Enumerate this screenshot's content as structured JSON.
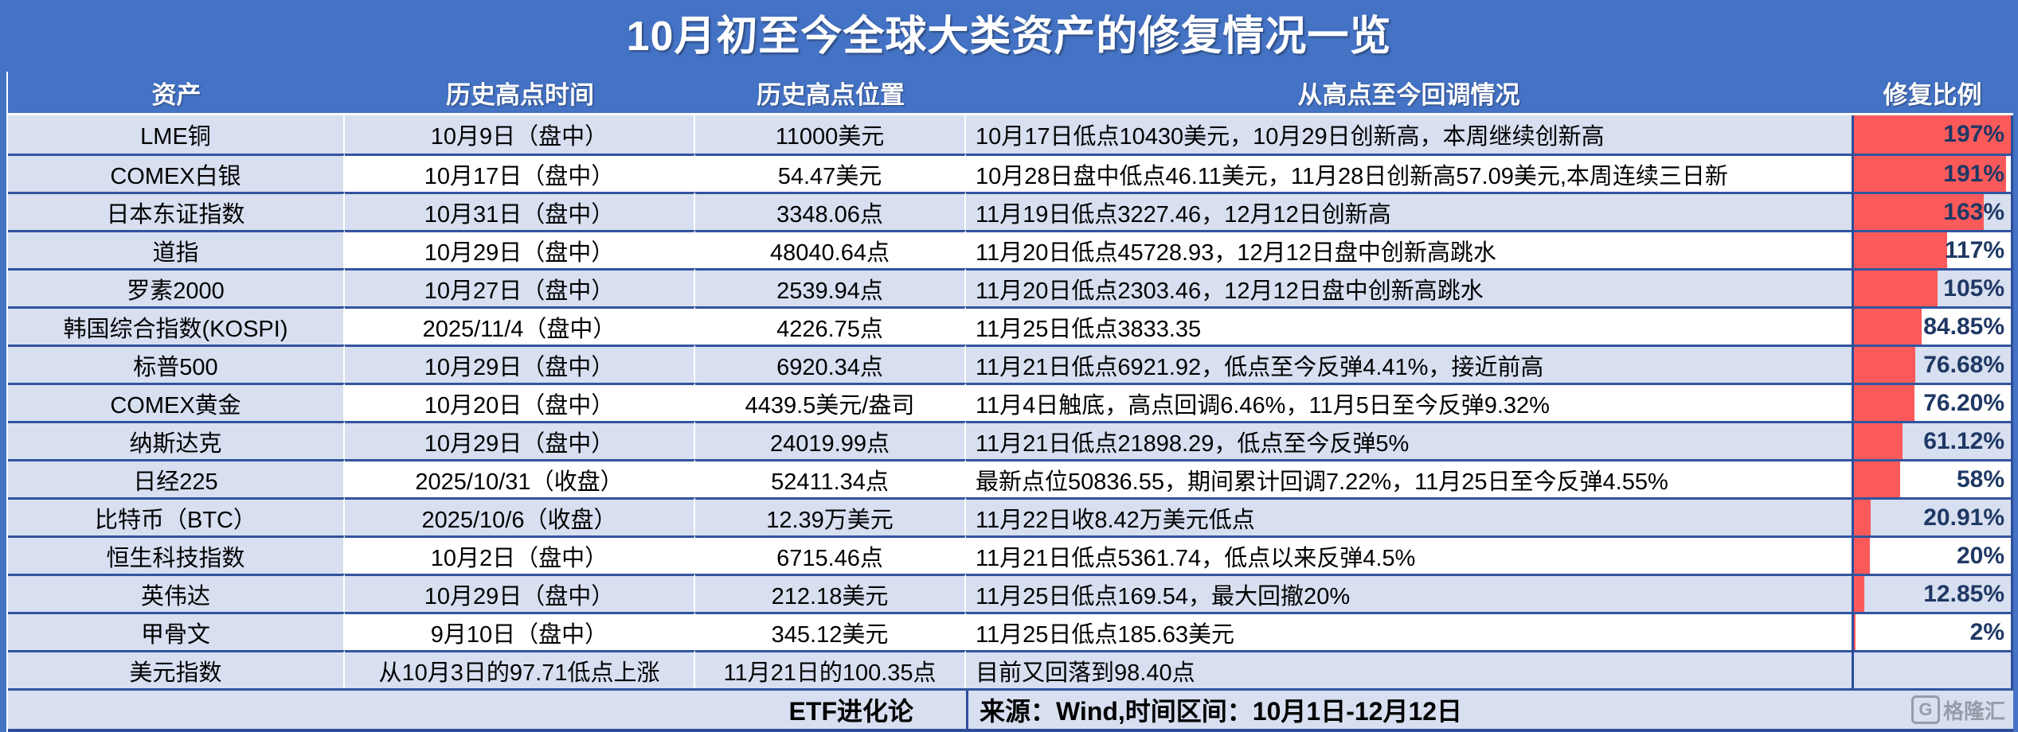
{
  "title": "10月初至今全球大类资产的修复情况一览",
  "colors": {
    "header_bg": "#4472C4",
    "row_alt_bg": "#D7DFF0",
    "row_plain_bg": "#FFFFFF",
    "bar_red": "#FB5A5A",
    "percent_text": "#1F3864",
    "row_border": "#32549E"
  },
  "chart_data": {
    "type": "table",
    "title": "10月初至今全球大类资产的修复情况一览",
    "columns": [
      "资产",
      "历史高点时间",
      "历史高点位置",
      "从高点至今回调情况",
      "修复比例"
    ],
    "bar_column": "修复比例",
    "bar_max": 197,
    "rows": [
      {
        "asset": "LME铜",
        "high_time": "10月9日（盘中）",
        "high_level": "11000美元",
        "pullback": "10月17日低点10430美元，10月29日创新高，本周继续创新高",
        "recovery_label": "197%",
        "recovery_value": 197
      },
      {
        "asset": "COMEX白银",
        "high_time": "10月17日（盘中）",
        "high_level": "54.47美元",
        "pullback": "10月28日盘中低点46.11美元，11月28日创新高57.09美元,本周连续三日新",
        "recovery_label": "191%",
        "recovery_value": 191
      },
      {
        "asset": "日本东证指数",
        "high_time": "10月31日（盘中）",
        "high_level": "3348.06点",
        "pullback": "11月19日低点3227.46，12月12日创新高",
        "recovery_label": "163%",
        "recovery_value": 163
      },
      {
        "asset": "道指",
        "high_time": "10月29日（盘中）",
        "high_level": "48040.64点",
        "pullback": "11月20日低点45728.93，12月12日盘中创新高跳水",
        "recovery_label": "117%",
        "recovery_value": 117
      },
      {
        "asset": "罗素2000",
        "high_time": "10月27日（盘中）",
        "high_level": "2539.94点",
        "pullback": "11月20日低点2303.46，12月12日盘中创新高跳水",
        "recovery_label": "105%",
        "recovery_value": 105
      },
      {
        "asset": "韩国综合指数(KOSPI)",
        "high_time": "2025/11/4（盘中）",
        "high_level": "4226.75点",
        "pullback": "11月25日低点3833.35",
        "recovery_label": "84.85%",
        "recovery_value": 84.85
      },
      {
        "asset": "标普500",
        "high_time": "10月29日（盘中）",
        "high_level": "6920.34点",
        "pullback": "11月21日低点6921.92，低点至今反弹4.41%，接近前高",
        "recovery_label": "76.68%",
        "recovery_value": 76.68
      },
      {
        "asset": "COMEX黄金",
        "high_time": "10月20日（盘中）",
        "high_level": "4439.5美元/盎司",
        "pullback": "11月4日触底，高点回调6.46%，11月5日至今反弹9.32%",
        "recovery_label": "76.20%",
        "recovery_value": 76.2
      },
      {
        "asset": "纳斯达克",
        "high_time": "10月29日（盘中）",
        "high_level": "24019.99点",
        "pullback": "11月21日低点21898.29，低点至今反弹5%",
        "recovery_label": "61.12%",
        "recovery_value": 61.12
      },
      {
        "asset": "日经225",
        "high_time": "2025/10/31（收盘）",
        "high_level": "52411.34点",
        "pullback": "最新点位50836.55，期间累计回调7.22%，11月25日至今反弹4.55%",
        "recovery_label": "58%",
        "recovery_value": 58
      },
      {
        "asset": "比特币（BTC）",
        "high_time": "2025/10/6（收盘）",
        "high_level": "12.39万美元",
        "pullback": "11月22日收8.42万美元低点",
        "recovery_label": "20.91%",
        "recovery_value": 20.91
      },
      {
        "asset": "恒生科技指数",
        "high_time": "10月2日（盘中）",
        "high_level": "6715.46点",
        "pullback": "11月21日低点5361.74，低点以来反弹4.5%",
        "recovery_label": "20%",
        "recovery_value": 20
      },
      {
        "asset": "英伟达",
        "high_time": "10月29日（盘中）",
        "high_level": "212.18美元",
        "pullback": "11月25日低点169.54，最大回撤20%",
        "recovery_label": "12.85%",
        "recovery_value": 12.85
      },
      {
        "asset": "甲骨文",
        "high_time": "9月10日（盘中）",
        "high_level": "345.12美元",
        "pullback": "11月25日低点185.63美元",
        "recovery_label": "2%",
        "recovery_value": 2
      },
      {
        "asset": "美元指数",
        "high_time": "从10月3日的97.71低点上涨",
        "high_level": "11月21日的100.35点",
        "pullback": "目前又回落到98.40点",
        "recovery_label": "",
        "recovery_value": null
      }
    ]
  },
  "footer": {
    "brand": "ETF进化论",
    "source": "来源：Wind,时间区间：10月1日-12月12日",
    "watermark_logo": "G",
    "watermark_text": "格隆汇"
  }
}
